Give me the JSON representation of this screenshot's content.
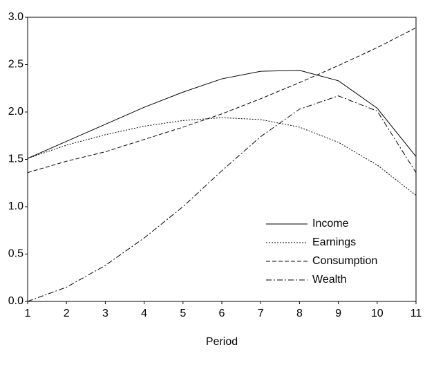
{
  "chart_data": {
    "type": "line",
    "xlabel": "Period",
    "x": [
      1,
      2,
      3,
      4,
      5,
      6,
      7,
      8,
      9,
      10,
      11
    ],
    "xlim": [
      1,
      11
    ],
    "xticks": [
      1,
      2,
      3,
      4,
      5,
      6,
      7,
      8,
      9,
      10,
      11
    ],
    "ylim": [
      0,
      3
    ],
    "yticks": [
      {
        "value": 0,
        "label": "0.0"
      },
      {
        "value": 0.5,
        "label": "0.5"
      },
      {
        "value": 1,
        "label": "1.0"
      },
      {
        "value": 1.5,
        "label": "1.5"
      },
      {
        "value": 2,
        "label": "2.0"
      },
      {
        "value": 2.5,
        "label": "2.5"
      },
      {
        "value": 3,
        "label": "3.0"
      }
    ],
    "grid": false,
    "legend": "lower right",
    "series": [
      {
        "name": "Income",
        "color": "#000000",
        "dash": "none",
        "values": [
          1.51,
          1.69,
          1.87,
          2.05,
          2.21,
          2.35,
          2.43,
          2.44,
          2.33,
          2.04,
          1.53
        ]
      },
      {
        "name": "Earnings",
        "color": "#000000",
        "dash": "2,2",
        "values": [
          1.51,
          1.65,
          1.76,
          1.85,
          1.91,
          1.94,
          1.92,
          1.84,
          1.68,
          1.44,
          1.12
        ]
      },
      {
        "name": "Consumption",
        "color": "#000000",
        "dash": "6,3",
        "values": [
          1.36,
          1.48,
          1.58,
          1.71,
          1.84,
          1.98,
          2.14,
          2.31,
          2.49,
          2.68,
          2.89
        ]
      },
      {
        "name": "Wealth",
        "color": "#000000",
        "dash": "8,3,2,3",
        "values": [
          0.0,
          0.15,
          0.38,
          0.67,
          1.0,
          1.38,
          1.74,
          2.03,
          2.17,
          2.01,
          1.36
        ]
      }
    ]
  }
}
